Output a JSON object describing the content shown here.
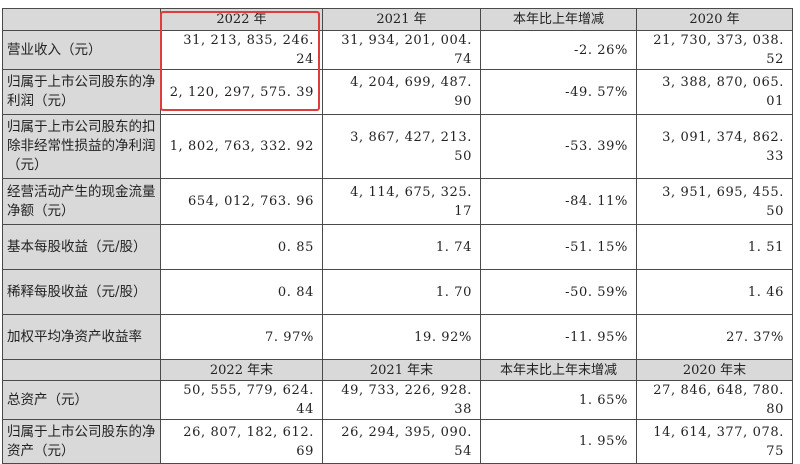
{
  "header": [
    "",
    "2022 年",
    "2021 年",
    "本年比上年增减",
    "2020 年"
  ],
  "rows": [
    {
      "label": "营业收入（元）",
      "v2022": "31, 213, 835, 246. 24",
      "v2021": "31, 934, 201, 004. 74",
      "change": "-2. 26%",
      "v2020": "21, 730, 373, 038. 52"
    },
    {
      "label": "归属于上市公司股东的净利润（元）",
      "v2022": "2, 120, 297, 575. 39",
      "v2021": "4, 204, 699, 487. 90",
      "change": "-49. 57%",
      "v2020": "3, 388, 870, 065. 01"
    },
    {
      "label": "归属于上市公司股东的扣除非经常性损益的净利润（元）",
      "v2022": "1, 802, 763, 332. 92",
      "v2021": "3, 867, 427, 213. 50",
      "change": "-53. 39%",
      "v2020": "3, 091, 374, 862. 33"
    },
    {
      "label": "经营活动产生的现金流量净额（元）",
      "v2022": "654, 012, 763. 96",
      "v2021": "4, 114, 675, 325. 17",
      "change": "-84. 11%",
      "v2020": "3, 951, 695, 455. 50"
    },
    {
      "label": "基本每股收益（元/股）",
      "v2022": "0. 85",
      "v2021": "1. 74",
      "change": "-51. 15%",
      "v2020": "1. 51"
    },
    {
      "label": "稀释每股收益（元/股）",
      "v2022": "0. 84",
      "v2021": "1. 70",
      "change": "-50. 59%",
      "v2020": "1. 46"
    },
    {
      "label": "加权平均净资产收益率",
      "v2022": "7. 97%",
      "v2021": "19. 92%",
      "change": "-11. 95%",
      "v2020": "27. 37%"
    }
  ],
  "header2": [
    "",
    "2022 年末",
    "2021 年末",
    "本年末比上年末增减",
    "2020 年末"
  ],
  "rows2": [
    {
      "label": "总资产（元）",
      "v2022": "50, 555, 779, 624. 44",
      "v2021": "49, 733, 226, 928. 38",
      "change": "1. 65%",
      "v2020": "27, 846, 648, 780. 80"
    },
    {
      "label": "归属于上市公司股东的净资产（元）",
      "v2022": "26, 807, 182, 612. 69",
      "v2021": "26, 294, 395, 090. 54",
      "change": "1. 95%",
      "v2020": "14, 614, 377, 078. 75"
    }
  ],
  "colors": {
    "header_bg": "#d9d9d9",
    "border": "#4a4a4a",
    "highlight": "#e03c3c"
  }
}
